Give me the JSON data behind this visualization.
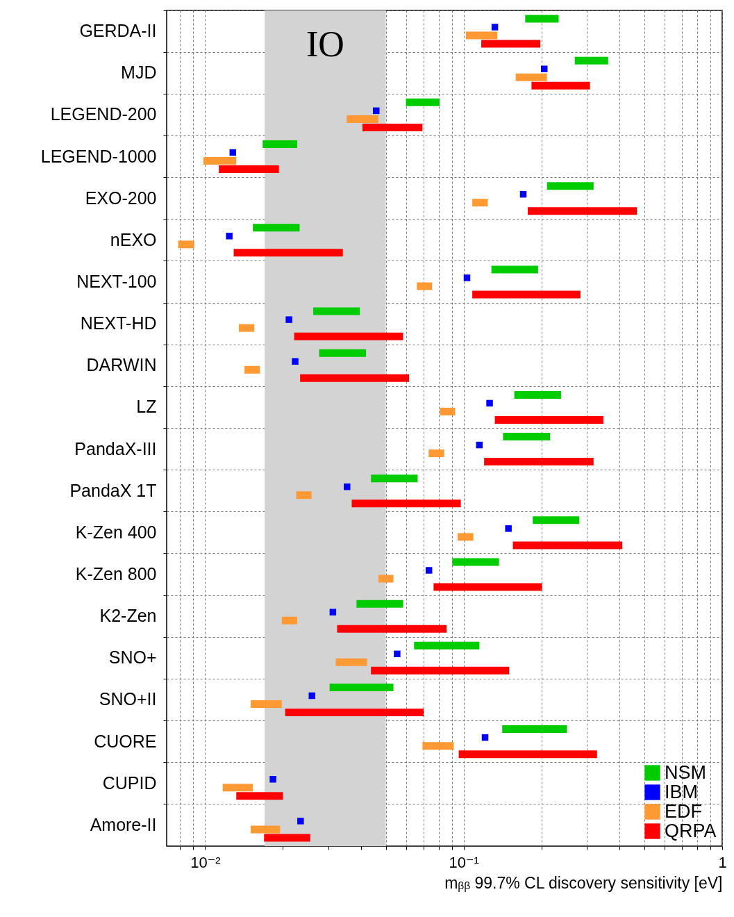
{
  "chart_data": {
    "type": "bar",
    "orientation": "horizontal",
    "log": "x",
    "grid": true,
    "legend": "bottom right",
    "marker": "square",
    "xlabel": "mᵦᵦ 99.7% CL discovery sensitivity [eV]",
    "categories": [
      "GERDA-II",
      "MJD",
      "LEGEND-200",
      "LEGEND-1000",
      "EXO-200",
      "nEXO",
      "NEXT-100",
      "NEXT-HD",
      "DARWIN",
      "LZ",
      "PandaX-III",
      "PandaX 1T",
      "K-Zen 400",
      "K-Zen 800",
      "K2-Zen",
      "SNO+",
      "SNO+II",
      "CUORE",
      "CUPID",
      "Amore-II"
    ],
    "xlim": [
      0.0071,
      1
    ],
    "xticks": [
      {
        "value": 0.008,
        "label": null
      },
      {
        "value": 0.009,
        "label": null
      },
      {
        "value": 0.01,
        "label": "10⁻²"
      },
      {
        "value": 0.02,
        "label": null
      },
      {
        "value": 0.03,
        "label": null
      },
      {
        "value": 0.04,
        "label": null
      },
      {
        "value": 0.05,
        "label": null
      },
      {
        "value": 0.06,
        "label": null
      },
      {
        "value": 0.07,
        "label": null
      },
      {
        "value": 0.08,
        "label": null
      },
      {
        "value": 0.09,
        "label": null
      },
      {
        "value": 0.1,
        "label": "10⁻¹"
      },
      {
        "value": 0.2,
        "label": null
      },
      {
        "value": 0.3,
        "label": null
      },
      {
        "value": 0.4,
        "label": null
      },
      {
        "value": 0.5,
        "label": null
      },
      {
        "value": 0.6,
        "label": null
      },
      {
        "value": 0.7,
        "label": null
      },
      {
        "value": 0.8,
        "label": null
      },
      {
        "value": 0.9,
        "label": null
      },
      1
    ],
    "bands": [
      {
        "axis": "x",
        "from": 0.017,
        "to": 0.05,
        "label": "IO",
        "color": "#d3d3d3"
      }
    ],
    "series": [
      {
        "name": "NSM",
        "color": "#00cc00",
        "base": [
          0.173,
          0.269,
          0.0598,
          0.0167,
          0.21,
          0.0153,
          0.128,
          0.0262,
          0.0276,
          0.157,
          0.142,
          0.0438,
          0.185,
          0.0904,
          0.0385,
          0.0643,
          0.0303,
          0.141,
          null,
          null
        ],
        "values": [
          0.06,
          0.093,
          0.0209,
          0.006,
          0.108,
          0.0079,
          0.066,
          0.0135,
          0.0143,
          0.081,
          0.074,
          0.0226,
          0.095,
          0.0466,
          0.0198,
          0.0507,
          0.0232,
          0.11,
          null,
          null
        ]
      },
      {
        "name": "IBM",
        "color": "#0000ff",
        "type": "scatter",
        "values": [
          0.132,
          0.205,
          0.0459,
          0.0128,
          0.17,
          0.0124,
          0.103,
          0.0211,
          0.0223,
          0.126,
          0.115,
          0.0354,
          0.149,
          0.0734,
          0.0312,
          0.0553,
          0.0259,
          0.121,
          0.0183,
          0.0234
        ]
      },
      {
        "name": "EDF",
        "color": "#ff9933",
        "base": [
          0.102,
          0.159,
          0.0353,
          0.00985,
          0.108,
          0.00787,
          0.0659,
          0.0135,
          0.0142,
          0.0809,
          0.0732,
          0.0225,
          0.0948,
          0.0468,
          0.0198,
          0.032,
          0.015,
          0.0693,
          0.0117,
          0.015
        ],
        "values": [
          0.033,
          0.051,
          0.0115,
          0.00335,
          0.016,
          0.00121,
          0.0096,
          0.002,
          0.0021,
          0.0118,
          0.0109,
          0.0033,
          0.0142,
          0.0067,
          0.0029,
          0.0103,
          0.0048,
          0.0223,
          0.0036,
          0.0045
        ]
      },
      {
        "name": "QRPA",
        "color": "#ff0000",
        "base": [
          0.117,
          0.183,
          0.0406,
          0.0113,
          0.177,
          0.0129,
          0.108,
          0.0221,
          0.0233,
          0.132,
          0.12,
          0.0369,
          0.155,
          0.0765,
          0.0324,
          0.0438,
          0.0204,
          0.0957,
          0.0132,
          0.0169
        ],
        "values": [
          0.081,
          0.125,
          0.0287,
          0.008,
          0.291,
          0.0212,
          0.175,
          0.0362,
          0.0382,
          0.215,
          0.198,
          0.0606,
          0.256,
          0.1245,
          0.0535,
          0.1062,
          0.0496,
          0.2323,
          0.0068,
          0.0086
        ]
      }
    ]
  }
}
